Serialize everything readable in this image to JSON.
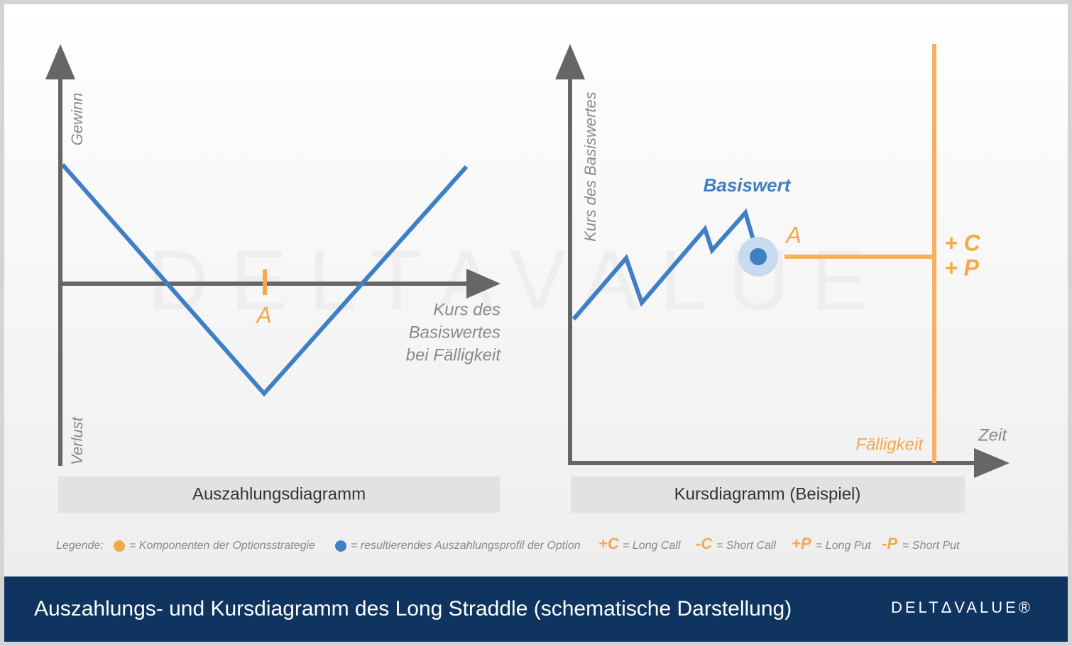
{
  "watermark": "DELTAVALUE",
  "payoff": {
    "y_top": "Gewinn",
    "y_bottom": "Verlust",
    "x_label": [
      "Kurs des",
      "Basiswertes",
      "bei Fälligkeit"
    ],
    "strike": "A",
    "caption": "Auszahlungsdiagramm"
  },
  "price": {
    "y_label": "Kurs des Basiswertes",
    "underlying": "Basiswert",
    "strike": "A",
    "components": [
      "+ C",
      "+ P"
    ],
    "expiry": "Fälligkeit",
    "x_label": "Zeit",
    "caption": "Kursdiagramm (Beispiel)"
  },
  "legend": {
    "label": "Legende:",
    "orange": "= Komponenten der Optionsstrategie",
    "blue": "= resultierendes Auszahlungsprofil der Option",
    "items": [
      {
        "symbol": "+C",
        "text": "= Long Call"
      },
      {
        "symbol": "-C",
        "text": "= Short Call"
      },
      {
        "symbol": "+P",
        "text": "= Long Put"
      },
      {
        "symbol": "-P",
        "text": "= Short Put"
      }
    ]
  },
  "footer": {
    "title": "Auszahlungs- und Kursdiagramm des Long Straddle (schematische Darstellung)",
    "logo": "DELTΔVALUE®"
  }
}
